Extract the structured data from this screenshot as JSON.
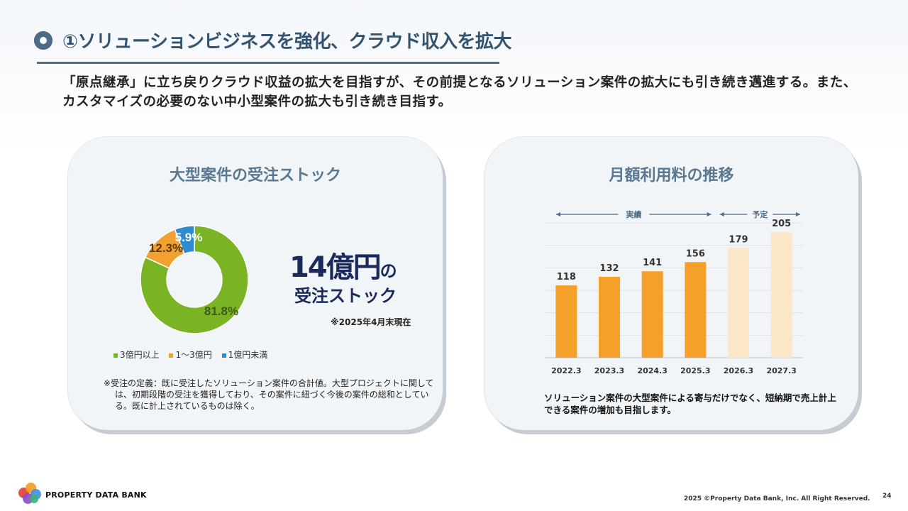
{
  "page_title": "①ソリューションビジネスを強化、クラウド収入を拡大",
  "lead": "「原点継承」に立ち戻りクラウド収益の拡大を目指すが、その前提となるソリューション案件の拡大にも引き続き邁進する。また、カスタマイズの必要のない中小型案件の拡大も引き続き目指す。",
  "left_card": {
    "title": "大型案件の受注ストック",
    "big_value": "14億円",
    "big_suffix": "の",
    "sub": "受注ストック",
    "note": "※2025年4月末現在",
    "legend": [
      {
        "label": "3億円以上",
        "color": "#7ab323"
      },
      {
        "label": "1〜3億円",
        "color": "#f2a030"
      },
      {
        "label": "1億円未満",
        "color": "#2e8bd0"
      }
    ],
    "definition": "※受注の定義：既に受注したソリューション案件の合計値。大型プロジェクトに関しては、初期段階の受注を獲得しており、その案件に紐づく今後の案件の総和としている。既に計上されているものは除く。"
  },
  "chart_data": [
    {
      "type": "pie",
      "subtype": "donut",
      "categories": [
        "3億円以上",
        "1〜3億円",
        "1億円未満"
      ],
      "values": [
        81.8,
        12.3,
        5.9
      ],
      "labels": [
        "81.8%",
        "12.3%",
        "5.9%"
      ],
      "colors": [
        "#7ab323",
        "#f2a030",
        "#2e8bd0"
      ],
      "legend_position": "bottom"
    },
    {
      "type": "bar",
      "title": "月額利用料の推移",
      "categories": [
        "2022.3",
        "2023.3",
        "2024.3",
        "2025.3",
        "2026.3",
        "2027.3"
      ],
      "values": [
        118,
        132,
        141,
        156,
        179,
        205
      ],
      "ylim": [
        0,
        220
      ],
      "grid": true,
      "colors": [
        "#f5a02a",
        "#f5a02a",
        "#f5a02a",
        "#f5a02a",
        "#fbe6c8",
        "#fbe6c8"
      ],
      "annotations": [
        {
          "text": "実績",
          "range": [
            "2022.3",
            "2025.3"
          ]
        },
        {
          "text": "予定",
          "range": [
            "2026.3",
            "2027.3"
          ]
        }
      ]
    }
  ],
  "right_card": {
    "title": "月額利用料の推移",
    "note": "ソリューション案件の大型案件による寄与だけでなく、短納期で売上計上できる案件の増加も目指します。"
  },
  "footer": {
    "logo_text": "PROPERTY DATA BANK",
    "copyright": "2025 ©Property Data Bank, Inc. All Right Reserved.",
    "page_number": "24"
  }
}
